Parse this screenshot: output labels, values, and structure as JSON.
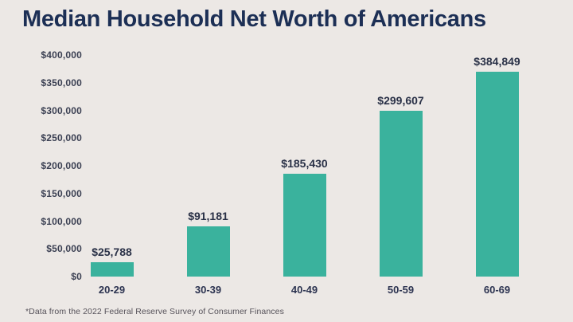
{
  "page": {
    "background": "#ece8e5",
    "accent": "#3ab29d",
    "title_color": "#1c2f55"
  },
  "header": {
    "title": "Median Household Net Worth of Americans"
  },
  "footnote": "*Data from the 2022 Federal Reserve Survey of Consumer Finances",
  "chart_data": {
    "type": "bar",
    "title": "Median Household Net Worth of Americans",
    "categories": [
      "20-29",
      "30-39",
      "40-49",
      "50-59",
      "60-69"
    ],
    "values": [
      25788,
      91181,
      185430,
      299607,
      384849
    ],
    "value_labels": [
      "$25,788",
      "$91,181",
      "$185,430",
      "$299,607",
      "$384,849"
    ],
    "y_ticks": [
      "$400,000",
      "$350,000",
      "$300,000",
      "$250,000",
      "$200,000",
      "$150,000",
      "$100,000",
      "$50,000",
      "$0"
    ],
    "ylim": [
      0,
      400000
    ],
    "xlabel": "",
    "ylabel": "",
    "grid": false,
    "legend": false,
    "bar_color": "#3ab29d"
  }
}
